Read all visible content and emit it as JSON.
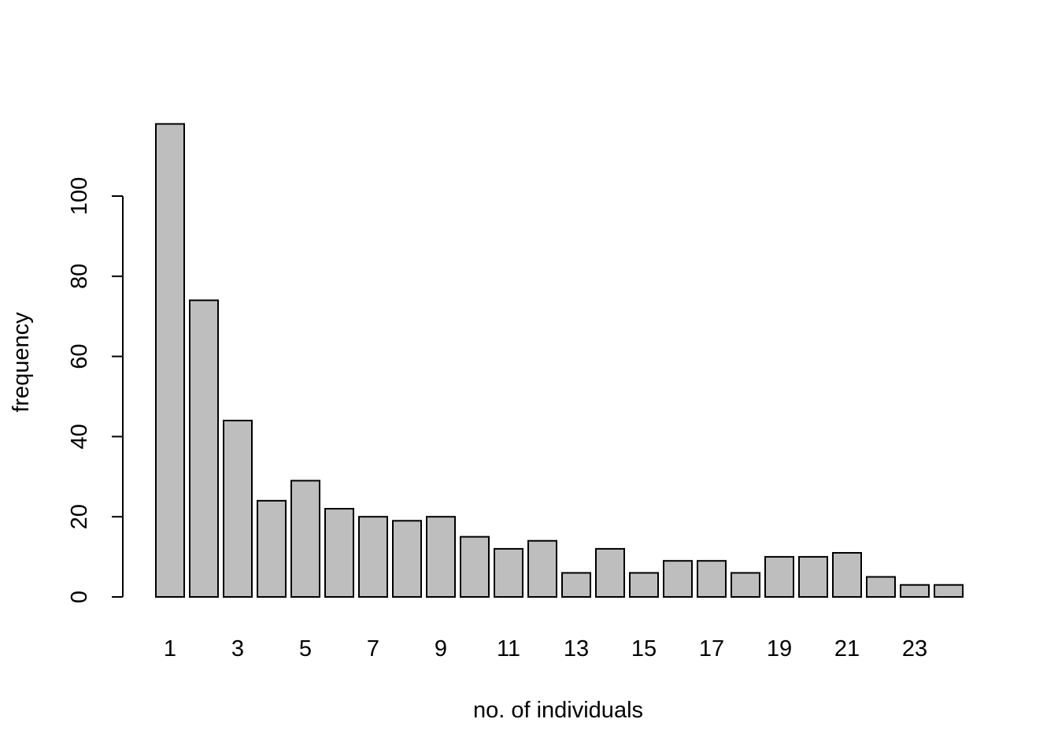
{
  "chart_data": {
    "type": "bar",
    "title": "",
    "xlabel": "no. of individuals",
    "ylabel": "frequency",
    "categories": [
      1,
      2,
      3,
      4,
      5,
      6,
      7,
      8,
      9,
      10,
      11,
      12,
      13,
      14,
      15,
      16,
      17,
      18,
      19,
      20,
      21,
      22,
      23,
      24
    ],
    "x_tick_labels": [
      "1",
      "3",
      "5",
      "7",
      "9",
      "11",
      "13",
      "15",
      "17",
      "19",
      "21",
      "23"
    ],
    "values": [
      118,
      74,
      44,
      24,
      29,
      22,
      20,
      19,
      20,
      15,
      12,
      14,
      6,
      12,
      6,
      9,
      9,
      6,
      10,
      10,
      11,
      5,
      3,
      3
    ],
    "ylim": [
      0,
      118
    ],
    "y_ticks": [
      0,
      20,
      40,
      60,
      80,
      100
    ],
    "bar_color": "#bebebe",
    "bar_border_color": "#000000",
    "grid": false,
    "legend": "none"
  }
}
